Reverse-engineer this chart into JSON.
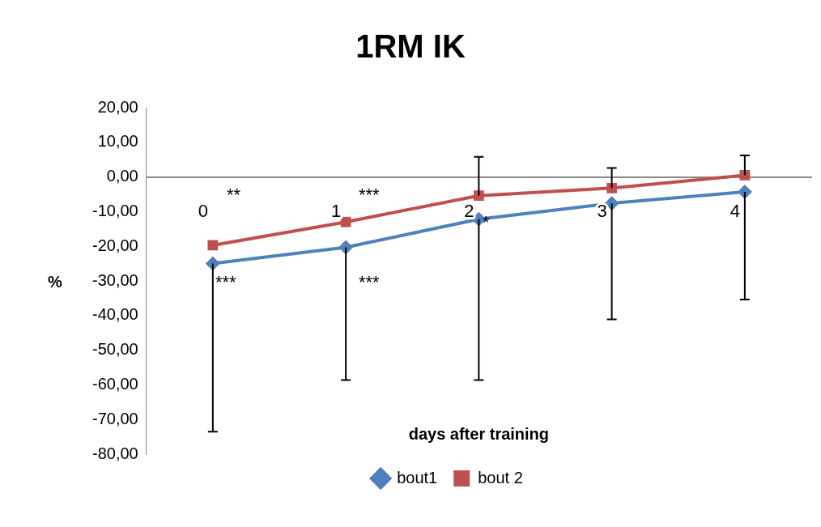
{
  "chart_data": {
    "type": "line",
    "title": "1RM IK",
    "xlabel": "days after training",
    "ylabel": "%",
    "categories": [
      "0",
      "1",
      "2",
      "3",
      "4"
    ],
    "series": [
      {
        "name": "bout1",
        "color": "#4f81bd",
        "marker": "diamond",
        "values": [
          -25,
          -20.3,
          -12.2,
          -7.6,
          -4.3
        ],
        "errors": [
          [
            -73.5,
            -25
          ],
          [
            -58.6,
            -20.3
          ],
          [
            -58.6,
            -12.2
          ],
          [
            -41.1,
            -7.6
          ],
          [
            -35.4,
            -4.3
          ]
        ]
      },
      {
        "name": "bout 2",
        "color": "#c0504d",
        "marker": "square",
        "values": [
          -19.7,
          -13,
          -5.4,
          -3.2,
          0.5
        ],
        "errors": [
          null,
          null,
          [
            -5.4,
            5.8
          ],
          [
            -3.2,
            2.6
          ],
          [
            0.5,
            6.2
          ]
        ]
      }
    ],
    "ylim": [
      -80,
      20
    ],
    "yticks": [
      {
        "value": 20,
        "label": "20,00"
      },
      {
        "value": 10,
        "label": "10,00"
      },
      {
        "value": 0,
        "label": "0,00"
      },
      {
        "value": -10,
        "label": "-10,00"
      },
      {
        "value": -20,
        "label": "-20,00"
      },
      {
        "value": -30,
        "label": "-30,00"
      },
      {
        "value": -40,
        "label": "-40,00"
      },
      {
        "value": -50,
        "label": "-50,00"
      },
      {
        "value": -60,
        "label": "-60,00"
      },
      {
        "value": -70,
        "label": "-70,00"
      },
      {
        "value": -80,
        "label": "-80,00"
      }
    ],
    "annotations": [
      "**",
      "***",
      "***",
      "***",
      "*"
    ],
    "grid": false,
    "legend": "bottom",
    "line_style": "solid"
  }
}
